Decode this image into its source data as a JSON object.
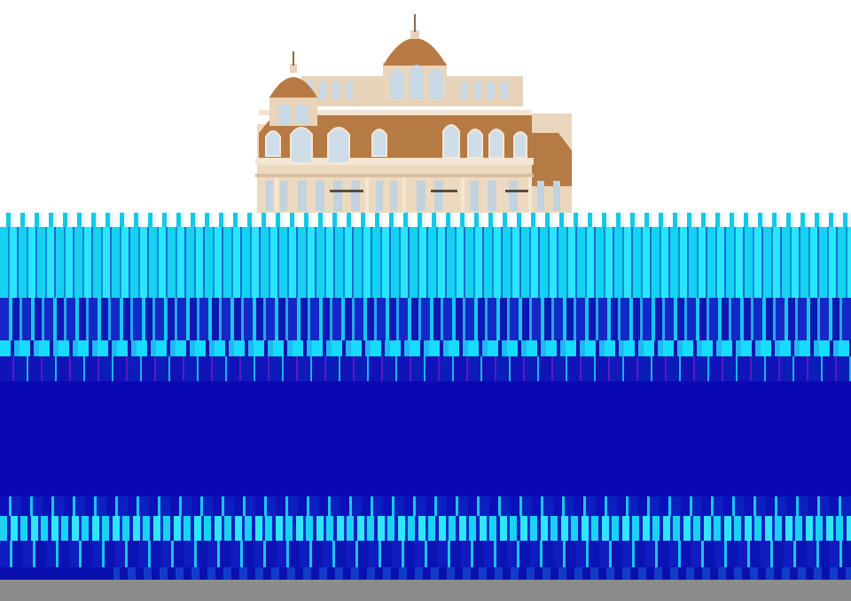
{
  "image": {
    "subject": "building-render",
    "colors": {
      "background": "#ffffff",
      "facade": "#e8d2b6",
      "roof": "#b67a44",
      "window": "#c8d8e4",
      "glitch_cyan": "#14d2f0",
      "glitch_blue": "#0a08b2",
      "bottom_gray": "#8c8c8c"
    }
  }
}
